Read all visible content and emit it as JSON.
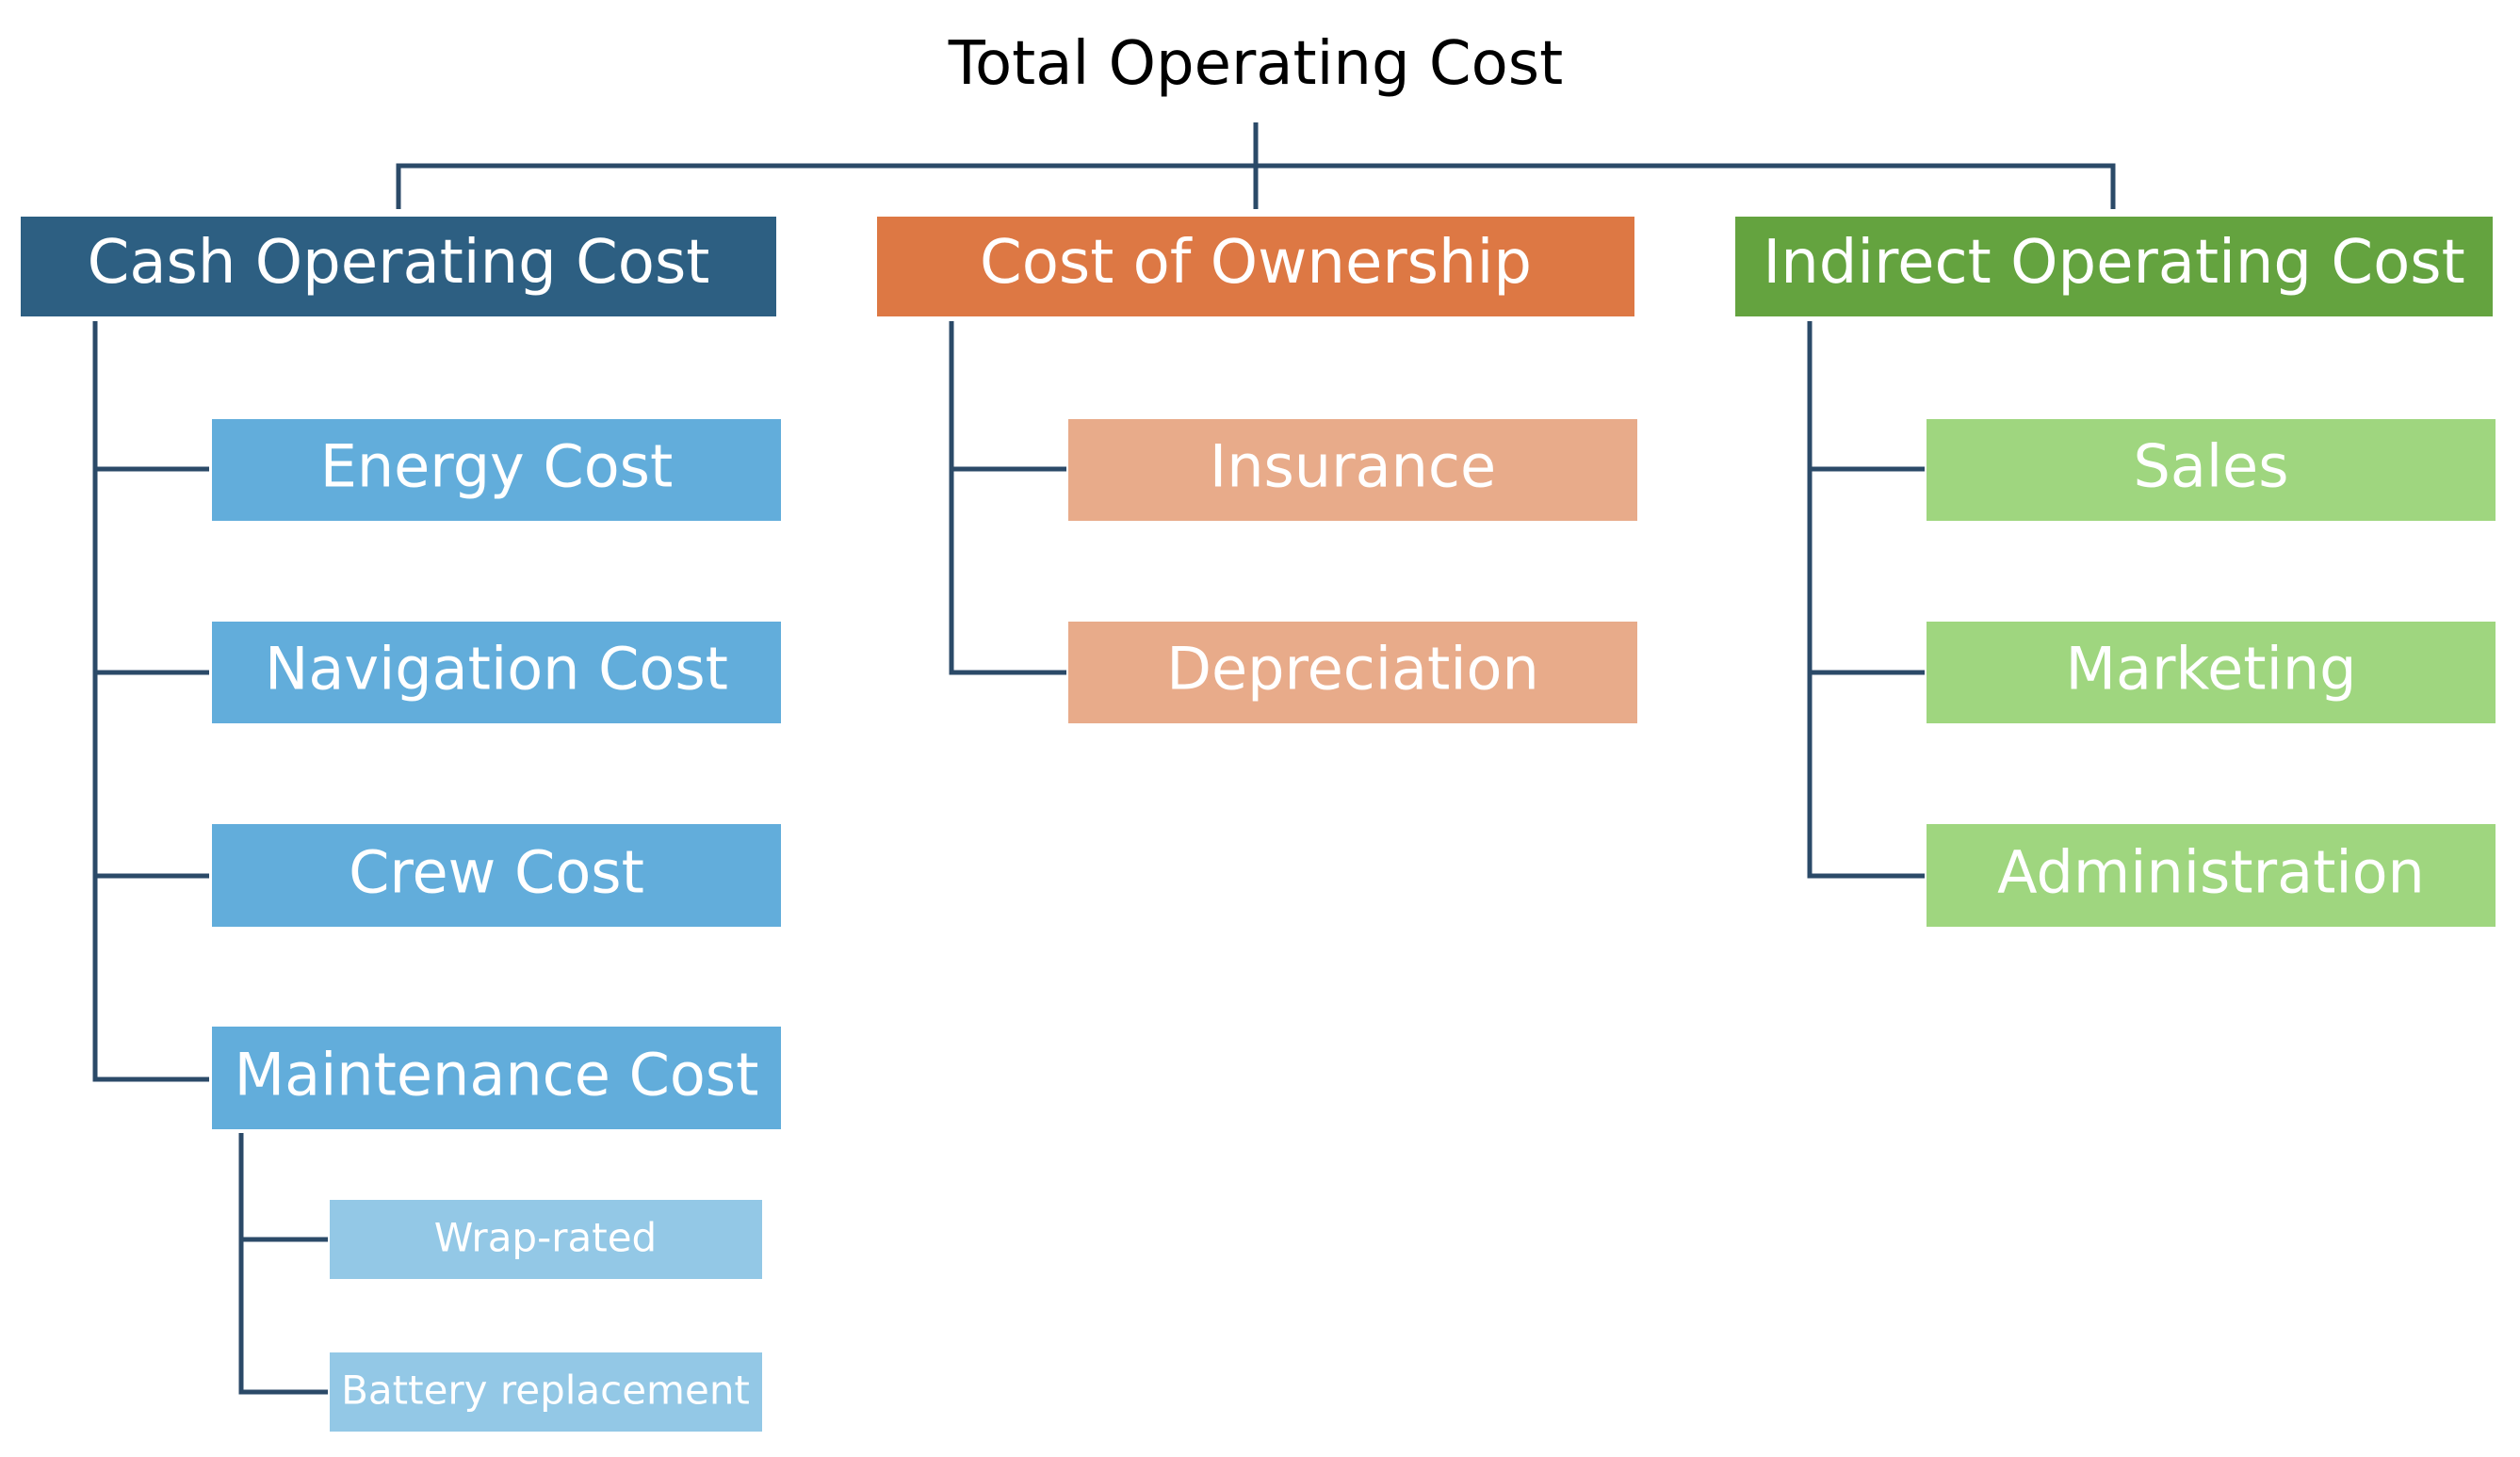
{
  "title": "Total Operating Cost",
  "groups": [
    {
      "label": "Cash Operating Cost",
      "children": [
        {
          "label": "Energy Cost"
        },
        {
          "label": "Navigation Cost"
        },
        {
          "label": "Crew Cost"
        },
        {
          "label": "Maintenance Cost",
          "children": [
            {
              "label": "Wrap-rated"
            },
            {
              "label": "Battery replacement"
            }
          ]
        }
      ]
    },
    {
      "label": "Cost of Ownership",
      "children": [
        {
          "label": "Insurance"
        },
        {
          "label": "Depreciation"
        }
      ]
    },
    {
      "label": "Indirect Operating Cost",
      "children": [
        {
          "label": "Sales"
        },
        {
          "label": "Marketing"
        },
        {
          "label": "Administration"
        }
      ]
    }
  ]
}
